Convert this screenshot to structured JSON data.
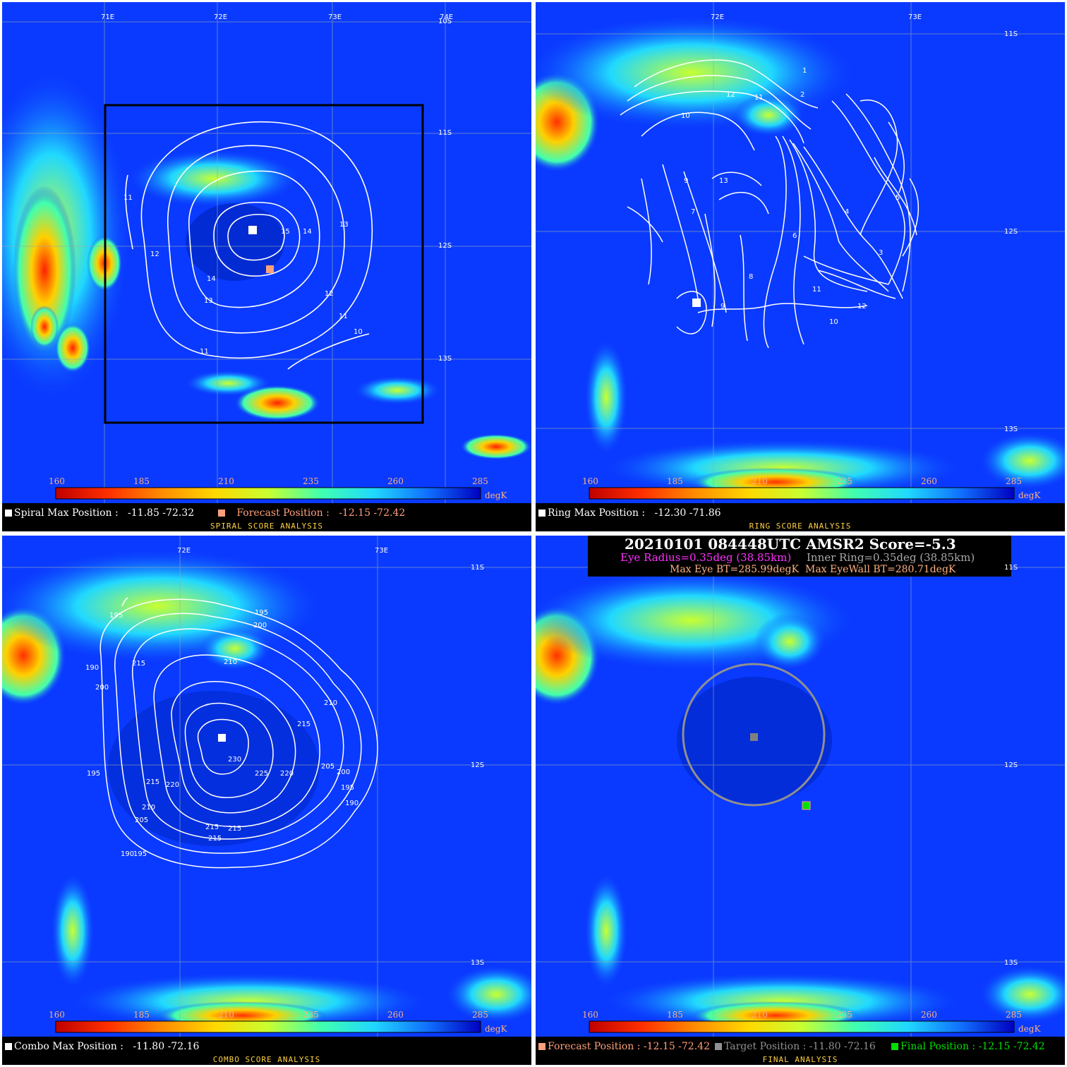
{
  "colorbar": {
    "ticks": [
      "160",
      "185",
      "210",
      "235",
      "260",
      "285"
    ],
    "unit": "degK",
    "colors": [
      "#c00000",
      "#ff3000",
      "#ff8c00",
      "#ffd800",
      "#c8ff30",
      "#40ffb0",
      "#20d8ff",
      "#1070ff",
      "#0000c0"
    ]
  },
  "panels": {
    "spiral": {
      "lon_ticks": [
        "71E",
        "72E",
        "73E",
        "74E"
      ],
      "lat_ticks": [
        "10S",
        "11S",
        "12S",
        "13S"
      ],
      "contour_labels": [
        "11",
        "12",
        "14",
        "13",
        "15",
        "14",
        "13",
        "12",
        "11",
        "10",
        "11"
      ],
      "marker1_label": "Spiral Max Position :",
      "marker1_value": "-11.85 -72.32",
      "marker2_label": "Forecast Position :",
      "marker2_value": "-12.15 -72.42",
      "title": "SPIRAL SCORE ANALYSIS"
    },
    "ring": {
      "lon_ticks": [
        "72E",
        "73E"
      ],
      "lat_ticks": [
        "11S",
        "12S",
        "13S"
      ],
      "contour_labels": [
        "1",
        "2",
        "11",
        "12",
        "10",
        "9",
        "13",
        "4",
        "3",
        "5",
        "6",
        "7",
        "8",
        "12",
        "11",
        "10",
        "9"
      ],
      "marker1_label": "Ring Max Position :",
      "marker1_value": "-12.30 -71.86",
      "title": "RING SCORE ANALYSIS"
    },
    "combo": {
      "lon_ticks": [
        "72E",
        "73E"
      ],
      "lat_ticks": [
        "11S",
        "12S",
        "13S"
      ],
      "contour_labels": [
        "195",
        "190",
        "200",
        "215",
        "210",
        "195",
        "200",
        "210",
        "215",
        "230",
        "225",
        "220",
        "205",
        "200",
        "195",
        "190",
        "215",
        "220",
        "210",
        "205",
        "215",
        "215",
        "215",
        "190",
        "195",
        "195"
      ],
      "marker1_label": "Combo Max Position :",
      "marker1_value": "-11.80 -72.16",
      "title": "COMBO SCORE ANALYSIS"
    },
    "final": {
      "lat_ticks": [
        "11S",
        "12S",
        "13S"
      ],
      "header_line1": "20210101  084448UTC     AMSR2    Score=-5.3",
      "eye_radius": "Eye Radius=0.35deg (38.85km)",
      "inner_ring": "Inner Ring=0.35deg (38.85km)",
      "max_eye_bt": "Max Eye BT=285.99degK",
      "max_eyewall_bt": "Max EyeWall BT=280.71degK",
      "forecast_label": "Forecast Position : -12.15 -72.42",
      "target_label": "Target Position : -11.80 -72.16",
      "final_label": "Final Position : -12.15 -72.42",
      "title": "FINAL ANALYSIS"
    }
  },
  "colors": {
    "forecast": "#ffa07a",
    "target": "#909090",
    "final": "#00e000",
    "eye": "#ff30ff",
    "inner": "#a8a8a8",
    "bt": "#ffb080",
    "subtitle": "#ffd040"
  }
}
